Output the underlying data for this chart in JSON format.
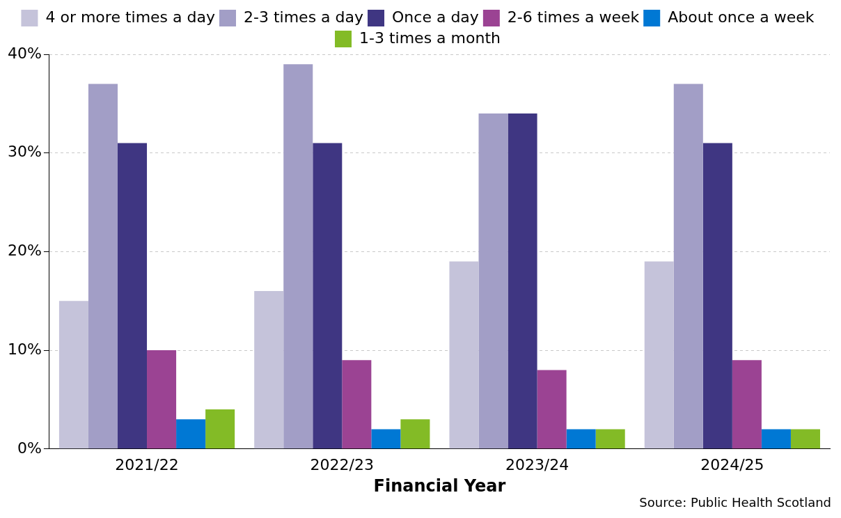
{
  "chart_data": {
    "type": "bar",
    "xlabel": "Financial Year",
    "categories": [
      "2021/22",
      "2022/23",
      "2023/24",
      "2024/25"
    ],
    "series": [
      {
        "name": "4 or more times a day",
        "color": "#c5c3da",
        "values": [
          15,
          16,
          19,
          19
        ]
      },
      {
        "name": "2-3 times a day",
        "color": "#a29ec6",
        "values": [
          37,
          39,
          34,
          37
        ]
      },
      {
        "name": "Once a day",
        "color": "#3f3682",
        "values": [
          31,
          31,
          34,
          31
        ]
      },
      {
        "name": "2-6 times a week",
        "color": "#9b4393",
        "values": [
          10,
          9,
          8,
          9
        ]
      },
      {
        "name": "About once a week",
        "color": "#0078d4",
        "values": [
          3,
          2,
          2,
          2
        ]
      },
      {
        "name": "1-3 times a month",
        "color": "#83bb26",
        "values": [
          4,
          3,
          2,
          2
        ]
      }
    ],
    "ylim": [
      0,
      40
    ],
    "yticks": [
      {
        "value": 0,
        "label": "0%"
      },
      {
        "value": 10,
        "label": "10%"
      },
      {
        "value": 20,
        "label": "20%"
      },
      {
        "value": 30,
        "label": "30%"
      },
      {
        "value": 40,
        "label": "40%"
      }
    ],
    "grid": "y",
    "legend": "top",
    "annotations": [
      "Source: Public Health Scotland"
    ]
  }
}
